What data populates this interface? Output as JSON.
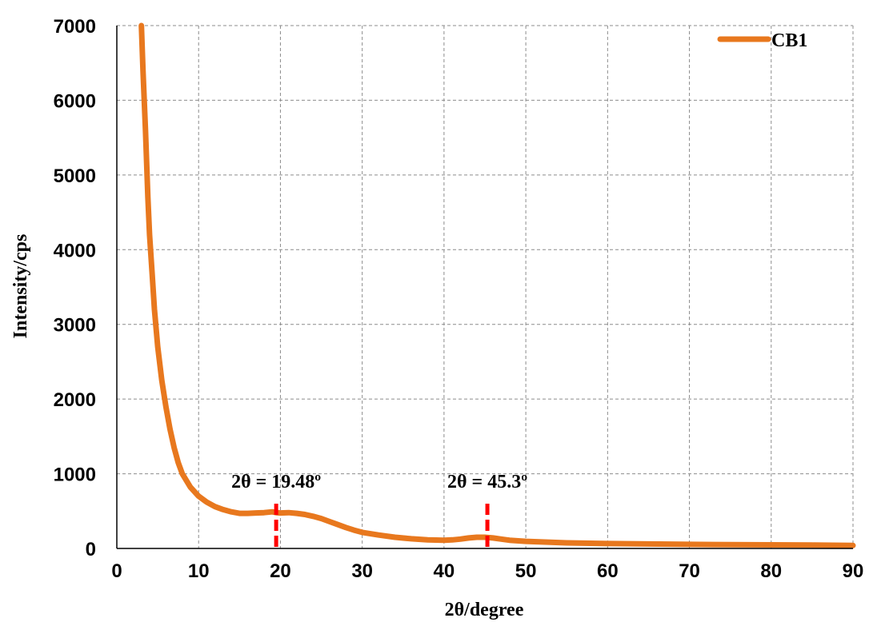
{
  "chart_data": {
    "type": "line",
    "xlabel": "2θ/degree",
    "ylabel": "Intensity/cps",
    "xlim": [
      0,
      90
    ],
    "ylim": [
      0,
      7000
    ],
    "xticks": [
      0,
      10,
      20,
      30,
      40,
      50,
      60,
      70,
      80,
      90
    ],
    "yticks": [
      0,
      1000,
      2000,
      3000,
      4000,
      5000,
      6000,
      7000
    ],
    "grid": true,
    "legend_position": "top-right",
    "series": [
      {
        "name": "CB1",
        "color": "#E8781E",
        "x": [
          3.0,
          3.2,
          3.5,
          3.8,
          4.0,
          4.3,
          4.6,
          5.0,
          5.5,
          6.0,
          6.5,
          7.0,
          7.5,
          8.0,
          9.0,
          10.0,
          11.0,
          12.0,
          13.0,
          14.0,
          15.0,
          16.0,
          17.0,
          18.0,
          19.0,
          19.5,
          20.0,
          21.0,
          22.0,
          23.0,
          24.0,
          25.0,
          26.0,
          27.0,
          28.0,
          29.0,
          30.0,
          32.0,
          34.0,
          36.0,
          38.0,
          40.0,
          41.0,
          42.0,
          43.0,
          44.0,
          45.0,
          46.0,
          47.0,
          48.0,
          50.0,
          55.0,
          60.0,
          65.0,
          70.0,
          75.0,
          80.0,
          85.0,
          90.0
        ],
        "y": [
          7000,
          6400,
          5600,
          4700,
          4200,
          3700,
          3200,
          2700,
          2250,
          1900,
          1600,
          1350,
          1150,
          1000,
          820,
          700,
          620,
          560,
          520,
          490,
          470,
          470,
          475,
          480,
          490,
          480,
          475,
          480,
          470,
          455,
          430,
          400,
          360,
          320,
          280,
          245,
          215,
          180,
          150,
          130,
          115,
          110,
          115,
          125,
          140,
          150,
          150,
          140,
          125,
          110,
          95,
          75,
          65,
          60,
          55,
          50,
          48,
          45,
          40
        ]
      }
    ],
    "annotations": [
      {
        "text": "2θ = 19.48º",
        "x": 19.48,
        "marker_top": 600
      },
      {
        "text": "2θ = 45.3º",
        "x": 45.3,
        "marker_top": 600
      }
    ],
    "annotation_color": "#FF0000"
  }
}
